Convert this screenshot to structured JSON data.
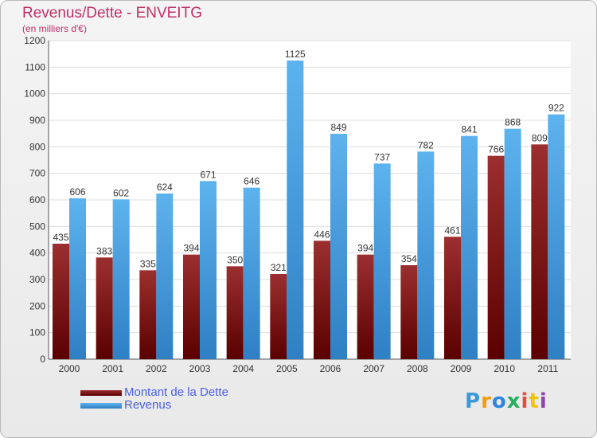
{
  "chart_data": {
    "type": "bar",
    "title": "Revenus/Dette - ENVEITG",
    "subtitle": "(en milliers d'€)",
    "categories": [
      "2000",
      "2001",
      "2002",
      "2003",
      "2004",
      "2005",
      "2006",
      "2007",
      "2008",
      "2009",
      "2010",
      "2011"
    ],
    "series": [
      {
        "name": "Montant de la Dette",
        "color": "#8b2222",
        "values": [
          435,
          383,
          335,
          394,
          350,
          321,
          446,
          394,
          354,
          461,
          766,
          809
        ]
      },
      {
        "name": "Revenus",
        "color": "#4da6e8",
        "values": [
          606,
          602,
          624,
          671,
          646,
          1125,
          849,
          737,
          782,
          841,
          868,
          922
        ]
      }
    ],
    "ylim": [
      0,
      1200
    ],
    "yticks": [
      0,
      100,
      200,
      300,
      400,
      500,
      600,
      700,
      800,
      900,
      1000,
      1100,
      1200
    ],
    "grid": true,
    "legend_position": "bottom-left"
  },
  "brand": {
    "letters": [
      "P",
      "r",
      "o",
      "x",
      "i",
      "t",
      "i"
    ],
    "colors": [
      "#3a9ad9",
      "#f39c12",
      "#2e86de",
      "#27ae60",
      "#e74c3c",
      "#f1c40f",
      "#8e44ad"
    ]
  }
}
